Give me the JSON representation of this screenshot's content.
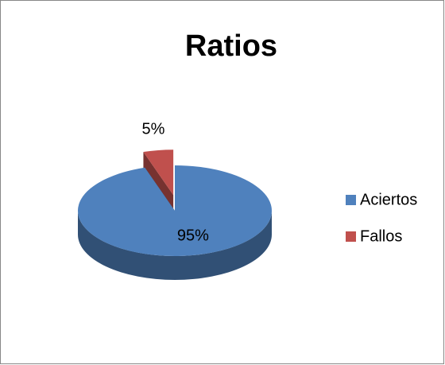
{
  "chart_data": {
    "type": "pie",
    "title": "Ratios",
    "categories": [
      "Aciertos",
      "Fallos"
    ],
    "values": [
      95,
      5
    ],
    "value_labels": [
      "95%",
      "5%"
    ],
    "colors": [
      "#4f81bd",
      "#c0504d"
    ],
    "legend": "right"
  }
}
